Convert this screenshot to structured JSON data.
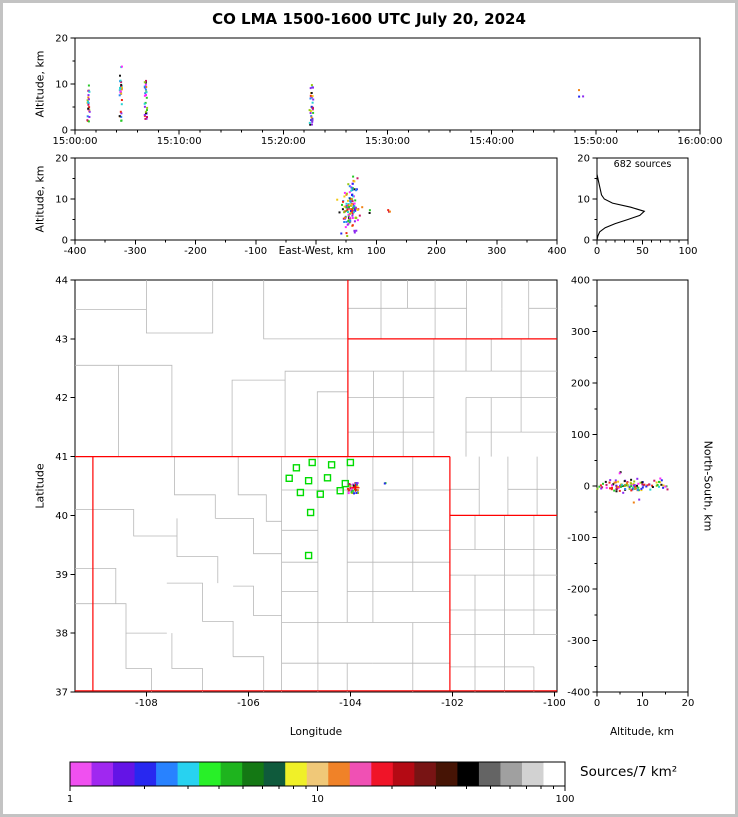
{
  "title": "CO LMA 1500-1600 UTC July 20, 2024",
  "point_colors": [
    "#ff28ff",
    "#8c28f0",
    "#2828f0",
    "#2886f0",
    "#28d2d2",
    "#28c828",
    "#96c814",
    "#f0c814",
    "#f08214",
    "#f02814",
    "#c81464",
    "#141414"
  ],
  "station_color": "#00dc00",
  "state_border_color": "#ff0000",
  "county_line_color": "#b8b8b8",
  "colorbar": {
    "label": "Sources/7 km²",
    "tick_values": [
      1,
      10,
      100
    ],
    "tick_labels": [
      "1",
      "10",
      "100"
    ],
    "colors": [
      "#f050f0",
      "#a028f0",
      "#6414e6",
      "#2828f0",
      "#2882ff",
      "#28d2f0",
      "#28f028",
      "#1eb41e",
      "#147814",
      "#0f5a3c",
      "#f0f028",
      "#f0c878",
      "#f08228",
      "#f050b4",
      "#f01428",
      "#b40a14",
      "#781414",
      "#461405",
      "#000000",
      "#646464",
      "#a0a0a0",
      "#d2d2d2",
      "#ffffff"
    ]
  },
  "chart_data": [
    {
      "id": "time_altitude",
      "type": "scatter",
      "ylabel": "Altitude, km",
      "xlim": [
        0,
        60
      ],
      "ylim": [
        0,
        20
      ],
      "xticks": {
        "values": [
          0,
          10,
          20,
          30,
          40,
          50,
          60
        ],
        "labels": [
          "15:00:00",
          "15:10:00",
          "15:20:00",
          "15:30:00",
          "15:40:00",
          "15:50:00",
          "16:00:00"
        ]
      },
      "yticks": {
        "values": [
          0,
          10,
          20
        ],
        "labels": [
          "0",
          "10",
          "20"
        ]
      },
      "minor_x_step": 2,
      "minor_y_step": 5,
      "clusters": [
        {
          "x": 1.3,
          "xs": 0.12,
          "y0": 1.5,
          "y1": 9.8,
          "n": 26
        },
        {
          "x": 4.4,
          "xs": 0.12,
          "y0": 2.0,
          "y1": 14.0,
          "n": 30
        },
        {
          "x": 6.8,
          "xs": 0.12,
          "y0": 1.5,
          "y1": 11.0,
          "n": 28
        },
        {
          "x": 22.7,
          "xs": 0.18,
          "y0": 1.0,
          "y1": 10.0,
          "n": 34
        },
        {
          "x": 48.6,
          "xs": 0.25,
          "y0": 7.0,
          "y1": 9.0,
          "n": 3
        }
      ]
    },
    {
      "id": "eastwest_altitude",
      "type": "scatter",
      "xlabel": "East-West, km",
      "ylabel": "Altitude, km",
      "xlim": [
        -400,
        400
      ],
      "ylim": [
        0,
        20
      ],
      "xticks": {
        "values": [
          -400,
          -300,
          -200,
          -100,
          0,
          100,
          200,
          300,
          400
        ],
        "labels": [
          "-400",
          "-300",
          "-200",
          "-100",
          "",
          "100",
          "200",
          "300",
          "400"
        ]
      },
      "yticks": {
        "values": [
          0,
          10,
          20
        ],
        "labels": [
          "0",
          "10",
          "20"
        ]
      },
      "minor_x_step": 50,
      "minor_y_step": 5,
      "clusters": [
        {
          "x": 57,
          "xs": 7,
          "y0": 3,
          "y1": 12.5,
          "n": 120,
          "gauss": true
        },
        {
          "x": 60,
          "xs": 4,
          "y0": 12.5,
          "y1": 15.5,
          "n": 7
        },
        {
          "x": 88,
          "xs": 1.5,
          "y0": 6.4,
          "y1": 7.6,
          "n": 2
        },
        {
          "x": 122,
          "xs": 3,
          "y0": 6,
          "y1": 8,
          "n": 3
        }
      ]
    },
    {
      "id": "altitude_histogram",
      "type": "line",
      "annotation": "682 sources",
      "xlim": [
        0,
        100
      ],
      "ylim": [
        0,
        20
      ],
      "xticks": {
        "values": [
          0,
          50,
          100
        ],
        "labels": [
          "0",
          "50",
          "100"
        ]
      },
      "yticks": {
        "values": [
          0,
          10,
          20
        ],
        "labels": [
          "0",
          "10",
          "20"
        ]
      },
      "minor_x_step": 10,
      "minor_y_step": 5,
      "alts": [
        0,
        1,
        2,
        3,
        4,
        5,
        6,
        7,
        8,
        9,
        10,
        11,
        12,
        13,
        14,
        15,
        16
      ],
      "counts": [
        0,
        1,
        3,
        9,
        20,
        34,
        47,
        52,
        37,
        17,
        8,
        5,
        4,
        3,
        2,
        1,
        0
      ]
    },
    {
      "id": "map",
      "type": "scatter",
      "xlabel": "Longitude",
      "ylabel": "Latitude",
      "xlim": [
        -109.4,
        -99.95
      ],
      "ylim": [
        37,
        44
      ],
      "xticks": {
        "values": [
          -108,
          -106,
          -104,
          -102,
          -100
        ],
        "labels": [
          "-108",
          "-106",
          "-104",
          "-102",
          "-100"
        ]
      },
      "yticks": {
        "values": [
          37,
          38,
          39,
          40,
          41,
          42,
          43,
          44
        ],
        "labels": [
          "37",
          "38",
          "39",
          "40",
          "41",
          "42",
          "43",
          "44"
        ]
      },
      "stations": [
        [
          -105.06,
          40.81
        ],
        [
          -104.75,
          40.9
        ],
        [
          -104.37,
          40.86
        ],
        [
          -104.0,
          40.9
        ],
        [
          -105.2,
          40.63
        ],
        [
          -104.82,
          40.59
        ],
        [
          -104.45,
          40.64
        ],
        [
          -104.1,
          40.54
        ],
        [
          -104.98,
          40.39
        ],
        [
          -104.59,
          40.36
        ],
        [
          -104.2,
          40.42
        ],
        [
          -104.78,
          40.05
        ],
        [
          -104.82,
          39.32
        ]
      ],
      "state_lines": [
        [
          [
            -109.05,
            37.02
          ],
          [
            -109.05,
            41
          ]
        ],
        [
          [
            -109.4,
            41
          ],
          [
            -102.05,
            41
          ]
        ],
        [
          [
            -102.05,
            37.02
          ],
          [
            -102.05,
            41
          ]
        ],
        [
          [
            -109.4,
            37.02
          ],
          [
            -99.95,
            37.02
          ]
        ],
        [
          [
            -104.05,
            41
          ],
          [
            -104.05,
            44
          ]
        ],
        [
          [
            -104.05,
            43
          ],
          [
            -99.95,
            43
          ]
        ],
        [
          [
            -102.05,
            40
          ],
          [
            -99.95,
            40
          ]
        ]
      ],
      "county_grids": [
        {
          "x0": -104.05,
          "x1": -99.95,
          "y0": 41,
          "y1": 43,
          "dx": 0.56,
          "dy": 0.5
        },
        {
          "x0": -104.05,
          "x1": -99.95,
          "y0": 43,
          "y1": 44,
          "dx": 0.6,
          "dy": 0.52
        },
        {
          "x0": -102.05,
          "x1": -99.95,
          "y0": 40,
          "y1": 41,
          "dx": 0.55,
          "dy": 0.5
        },
        {
          "x0": -102.05,
          "x1": -99.95,
          "y0": 37,
          "y1": 40,
          "dx": 0.55,
          "dy": 0.48
        },
        {
          "x0": -105.35,
          "x1": -102.05,
          "y0": 37,
          "y1": 41,
          "dx": 0.62,
          "dy": 0.56
        }
      ],
      "county_lines": [
        [
          [
            -105.35,
            37
          ],
          [
            -105.35,
            41
          ]
        ],
        [
          [
            -106.2,
            41
          ],
          [
            -106.2,
            40.35
          ],
          [
            -105.65,
            40.35
          ],
          [
            -105.65,
            39.9
          ],
          [
            -105.35,
            39.9
          ]
        ],
        [
          [
            -107.45,
            41
          ],
          [
            -107.45,
            40.35
          ],
          [
            -106.65,
            40.35
          ],
          [
            -106.65,
            39.95
          ]
        ],
        [
          [
            -109.4,
            40.1
          ],
          [
            -108.25,
            40.1
          ],
          [
            -108.25,
            39.65
          ],
          [
            -107.4,
            39.65
          ]
        ],
        [
          [
            -107.4,
            39.95
          ],
          [
            -107.4,
            39.3
          ],
          [
            -106.6,
            39.3
          ],
          [
            -106.6,
            38.85
          ]
        ],
        [
          [
            -106.65,
            39.95
          ],
          [
            -105.9,
            39.95
          ],
          [
            -105.9,
            39.35
          ],
          [
            -105.35,
            39.35
          ]
        ],
        [
          [
            -109.4,
            39.1
          ],
          [
            -108.6,
            39.1
          ],
          [
            -108.6,
            38.5
          ]
        ],
        [
          [
            -109.4,
            38.5
          ],
          [
            -108.4,
            38.5
          ],
          [
            -108.4,
            38.0
          ],
          [
            -107.6,
            38.0
          ]
        ],
        [
          [
            -107.6,
            38.85
          ],
          [
            -106.9,
            38.85
          ],
          [
            -106.9,
            38.2
          ],
          [
            -106.3,
            38.2
          ],
          [
            -106.3,
            37.6
          ]
        ],
        [
          [
            -106.3,
            38.8
          ],
          [
            -105.9,
            38.8
          ],
          [
            -105.9,
            38.3
          ],
          [
            -105.35,
            38.3
          ]
        ],
        [
          [
            -106.3,
            37.6
          ],
          [
            -105.7,
            37.6
          ],
          [
            -105.7,
            37
          ]
        ],
        [
          [
            -107.5,
            38.0
          ],
          [
            -107.5,
            37.4
          ],
          [
            -106.9,
            37.4
          ],
          [
            -106.9,
            37
          ]
        ],
        [
          [
            -108.4,
            38.0
          ],
          [
            -108.4,
            37.4
          ],
          [
            -107.9,
            37.4
          ],
          [
            -107.9,
            37
          ]
        ],
        [
          [
            -105.28,
            41
          ],
          [
            -105.28,
            42.45
          ],
          [
            -104.05,
            42.45
          ]
        ],
        [
          [
            -106.32,
            41
          ],
          [
            -106.32,
            42.3
          ],
          [
            -105.28,
            42.3
          ]
        ],
        [
          [
            -107.5,
            41
          ],
          [
            -107.5,
            42.55
          ],
          [
            -109.4,
            42.55
          ]
        ],
        [
          [
            -108.55,
            41
          ],
          [
            -108.55,
            42.55
          ]
        ],
        [
          [
            -104.65,
            41
          ],
          [
            -104.65,
            42.1
          ],
          [
            -104.05,
            42.1
          ]
        ],
        [
          [
            -108.0,
            44
          ],
          [
            -108.0,
            43.1
          ],
          [
            -106.7,
            43.1
          ],
          [
            -106.7,
            44
          ]
        ],
        [
          [
            -105.7,
            44
          ],
          [
            -105.7,
            43.0
          ],
          [
            -104.05,
            43.0
          ]
        ],
        [
          [
            -109.4,
            43.5
          ],
          [
            -108.0,
            43.5
          ]
        ]
      ],
      "clusters": [
        {
          "x": -103.95,
          "xs": 0.1,
          "y0": 40.37,
          "y1": 40.55,
          "n": 42
        },
        {
          "x": -103.32,
          "xs": 0.03,
          "y0": 40.53,
          "y1": 40.58,
          "n": 2
        }
      ],
      "cross_marker": {
        "x": -103.9,
        "y": 40.47,
        "color": "#ff0000"
      }
    },
    {
      "id": "northsouth_altitude",
      "type": "scatter",
      "xlabel": "Altitude, km",
      "ylabel": "North-South, km",
      "xlim": [
        0,
        20
      ],
      "ylim": [
        -400,
        400
      ],
      "xticks": {
        "values": [
          0,
          10,
          20
        ],
        "labels": [
          "0",
          "10",
          "20"
        ]
      },
      "yticks": {
        "values": [
          -400,
          -300,
          -200,
          -100,
          0,
          100,
          200,
          300,
          400
        ],
        "labels": [
          "-400",
          "-300",
          "-200",
          "-100",
          "0",
          "100",
          "200",
          "300",
          "400"
        ]
      },
      "minor_x_step": 5,
      "minor_y_step": 50,
      "clusters": [
        {
          "x": 7,
          "xs": 3.2,
          "y0": -9,
          "y1": 9,
          "n": 110,
          "gauss": true
        },
        {
          "x": 14.5,
          "xs": 1.2,
          "y0": -4,
          "y1": 4,
          "n": 5
        },
        {
          "x": 5,
          "xs": 1,
          "y0": 24,
          "y1": 32,
          "n": 2
        },
        {
          "x": 9,
          "xs": 1,
          "y0": -34,
          "y1": -26,
          "n": 2
        }
      ]
    }
  ]
}
